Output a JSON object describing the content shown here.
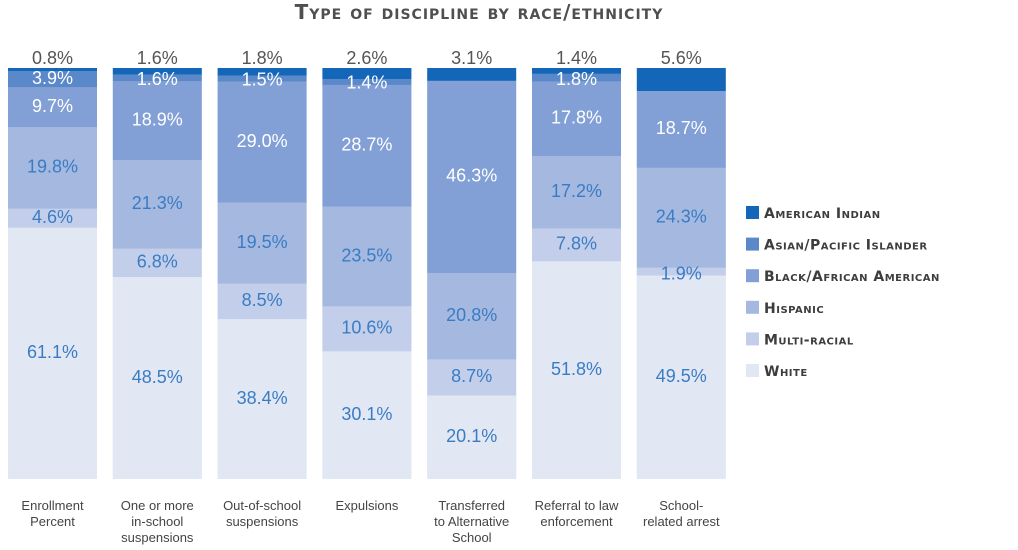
{
  "chart_data": {
    "type": "bar",
    "stacked": true,
    "title": "Type of discipline by race/ethnicity",
    "categories": [
      [
        "Enrollment",
        "Percent"
      ],
      [
        "One or more",
        "in-school",
        "suspensions"
      ],
      [
        "Out-of-school",
        "suspensions"
      ],
      [
        "Expulsions"
      ],
      [
        "Transferred",
        "to Alternative",
        "School"
      ],
      [
        "Referral to law",
        "enforcement"
      ],
      [
        "School-",
        "related arrest"
      ]
    ],
    "series": [
      {
        "name": "White",
        "color": "#e2e7f4",
        "text_color": "#3a7cc4",
        "values": [
          61.1,
          48.5,
          38.4,
          30.1,
          20.1,
          51.8,
          49.5
        ],
        "labels": [
          "61.1%",
          "48.5%",
          "38.4%",
          "30.1%",
          "20.1%",
          "51.8%",
          "49.5%"
        ]
      },
      {
        "name": "Multi-racial",
        "color": "#c3cfea",
        "text_color": "#3a7cc4",
        "values": [
          4.6,
          6.8,
          8.5,
          10.6,
          8.7,
          7.8,
          1.9
        ],
        "labels": [
          "4.6%",
          "6.8%",
          "8.5%",
          "10.6%",
          "8.7%",
          "7.8%",
          "1.9%"
        ]
      },
      {
        "name": "Hispanic",
        "color": "#a4b8e0",
        "text_color": "#3a7cc4",
        "values": [
          19.8,
          21.3,
          19.5,
          23.5,
          20.8,
          17.2,
          24.3
        ],
        "labels": [
          "19.8%",
          "21.3%",
          "19.5%",
          "23.5%",
          "20.8%",
          "17.2%",
          "24.3%"
        ]
      },
      {
        "name": "Black/African American",
        "color": "#829fd6",
        "text_color": "#ffffff",
        "values": [
          9.7,
          18.9,
          29.0,
          28.7,
          46.3,
          17.8,
          18.7
        ],
        "labels": [
          "9.7%",
          "18.9%",
          "29.0%",
          "28.7%",
          "46.3%",
          "17.8%",
          "18.7%"
        ]
      },
      {
        "name": "Asian/Pacific Islander",
        "color": "#5b88c9",
        "text_color": "#ffffff",
        "values": [
          3.9,
          1.6,
          1.5,
          1.4,
          0,
          1.8,
          0
        ],
        "labels": [
          "3.9%",
          "1.6%",
          "1.5%",
          "1.4%",
          "",
          "1.8%",
          ""
        ]
      },
      {
        "name": "American Indian",
        "color": "#1467b8",
        "text_color": "#555555",
        "values": [
          0.8,
          1.6,
          1.8,
          2.6,
          3.1,
          1.4,
          5.6
        ],
        "labels": [
          "0.8%",
          "1.6%",
          "1.8%",
          "2.6%",
          "3.1%",
          "1.4%",
          "5.6%"
        ]
      }
    ],
    "legend_order": [
      "American Indian",
      "Asian/Pacific Islander",
      "Black/African American",
      "Hispanic",
      "Multi-racial",
      "White"
    ],
    "legend_position": "right",
    "ylim": [
      0,
      100
    ],
    "grid": false
  }
}
